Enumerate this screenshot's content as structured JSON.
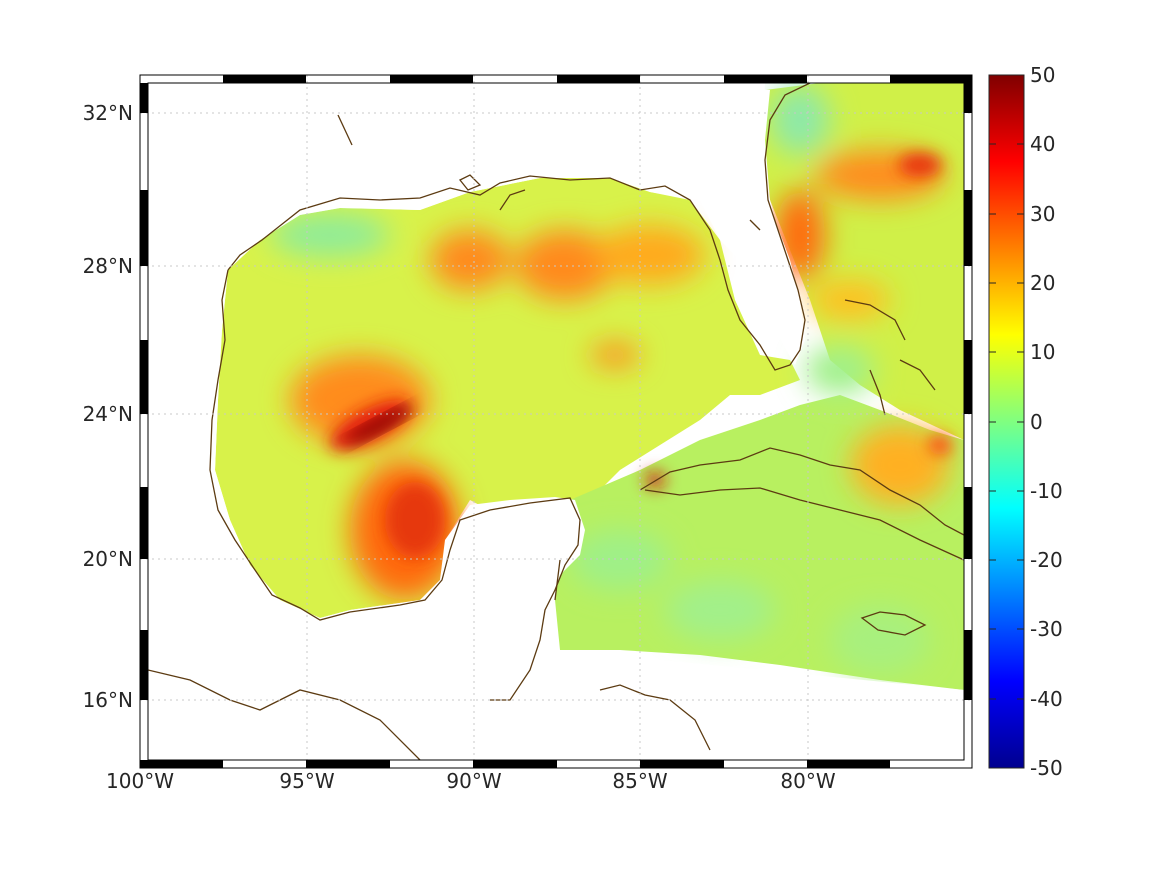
{
  "map": {
    "lat_labels": [
      "32°N",
      "28°N",
      "24°N",
      "20°N",
      "16°N"
    ],
    "lon_labels": [
      "100°W",
      "95°W",
      "90°W",
      "85°W",
      "80°W"
    ],
    "grid": true,
    "coastline_color": "#5c3b12"
  },
  "colorbar": {
    "ticks": [
      "50",
      "40",
      "30",
      "20",
      "10",
      "0",
      "-10",
      "-20",
      "-30",
      "-40",
      "-50"
    ],
    "min": -50,
    "max": 50,
    "colormap": "jet",
    "orientation": "vertical",
    "placement": "right"
  }
}
